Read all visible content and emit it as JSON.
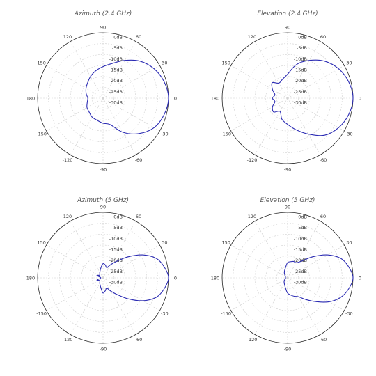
{
  "colors": {
    "trace": "#2b2bb3",
    "outer": "#222222",
    "grid": "#cfcfcf"
  },
  "chart_data": [
    {
      "type": "polar",
      "title": "Azimuth (2.4 GHz)",
      "angle_ticks": [
        "90",
        "60",
        "30",
        "0",
        "-30",
        "-60",
        "-90",
        "-120",
        "-150",
        "180",
        "150",
        "120"
      ],
      "radial_ticks": [
        "0dB",
        "-5dB",
        "-10dB",
        "-15dB",
        "-20dB",
        "-25dB",
        "-30dB"
      ],
      "rlim": [
        -30,
        0
      ],
      "theta": [
        0,
        15,
        30,
        45,
        60,
        75,
        90,
        105,
        120,
        135,
        150,
        165,
        180,
        195,
        210,
        225,
        240,
        255,
        270,
        285,
        300,
        315,
        330,
        345
      ],
      "values": [
        0,
        -1,
        -3,
        -6,
        -10,
        -13.5,
        -15.5,
        -17,
        -18.5,
        -20,
        -21,
        -22,
        -23,
        -22.5,
        -21.5,
        -21,
        -20,
        -19.5,
        -18.5,
        -17.5,
        -12,
        -7,
        -3,
        -1
      ]
    },
    {
      "type": "polar",
      "title": "Elevation (2.4 GHz)",
      "angle_ticks": [
        "90",
        "60",
        "30",
        "0",
        "-30",
        "-60",
        "-90",
        "-120",
        "-150",
        "180",
        "150",
        "120"
      ],
      "radial_ticks": [
        "0dB",
        "-5dB",
        "-10dB",
        "-15dB",
        "-20dB",
        "-25dB",
        "-30dB"
      ],
      "rlim": [
        -30,
        0
      ],
      "theta": [
        0,
        15,
        30,
        45,
        60,
        75,
        90,
        105,
        120,
        135,
        150,
        165,
        180,
        195,
        210,
        225,
        240,
        255,
        270,
        285,
        300,
        315,
        330,
        345
      ],
      "values": [
        0,
        -1,
        -3,
        -6,
        -10,
        -14,
        -19,
        -21,
        -22,
        -20,
        -22,
        -24,
        -23,
        -24,
        -22,
        -21,
        -23,
        -20,
        -18,
        -15,
        -11,
        -6,
        -3,
        -1
      ]
    },
    {
      "type": "polar",
      "title": "Azimuth (5 GHz)",
      "angle_ticks": [
        "90",
        "60",
        "30",
        "0",
        "-30",
        "-60",
        "-90",
        "-120",
        "-150",
        "180",
        "150",
        "120"
      ],
      "radial_ticks": [
        "0dB",
        "-5dB",
        "-10dB",
        "-15dB",
        "-20dB",
        "-25dB",
        "-30dB"
      ],
      "rlim": [
        -30,
        0
      ],
      "theta": [
        0,
        10,
        20,
        30,
        40,
        50,
        60,
        70,
        80,
        90,
        100,
        120,
        140,
        160,
        180,
        200,
        220,
        240,
        260,
        270,
        280,
        290,
        300,
        310,
        320,
        330,
        340,
        350
      ],
      "values": [
        0,
        -1.5,
        -4,
        -9,
        -15,
        -20,
        -23,
        -25,
        -24,
        -23.5,
        -25,
        -27,
        -28,
        -27,
        -29,
        -27,
        -28,
        -27,
        -25,
        -23,
        -24,
        -25,
        -23,
        -20,
        -15,
        -9,
        -4,
        -1.5
      ]
    },
    {
      "type": "polar",
      "title": "Elevation (5 GHz)",
      "angle_ticks": [
        "90",
        "60",
        "30",
        "0",
        "-30",
        "-60",
        "-90",
        "-120",
        "-150",
        "180",
        "150",
        "120"
      ],
      "radial_ticks": [
        "0dB",
        "-5dB",
        "-10dB",
        "-15dB",
        "-20dB",
        "-25dB",
        "-30dB"
      ],
      "rlim": [
        -30,
        0
      ],
      "theta": [
        0,
        10,
        20,
        30,
        40,
        50,
        60,
        70,
        80,
        90,
        100,
        120,
        140,
        160,
        180,
        200,
        220,
        240,
        260,
        270,
        280,
        290,
        300,
        310,
        320,
        330,
        340,
        350
      ],
      "values": [
        0,
        -1.5,
        -4,
        -9,
        -15,
        -20,
        -22,
        -22,
        -22.5,
        -23,
        -25,
        -27,
        -28.5,
        -29,
        -29,
        -29,
        -28,
        -27,
        -25,
        -23,
        -22,
        -21,
        -20,
        -17,
        -13,
        -8,
        -4,
        -1.5
      ]
    }
  ]
}
